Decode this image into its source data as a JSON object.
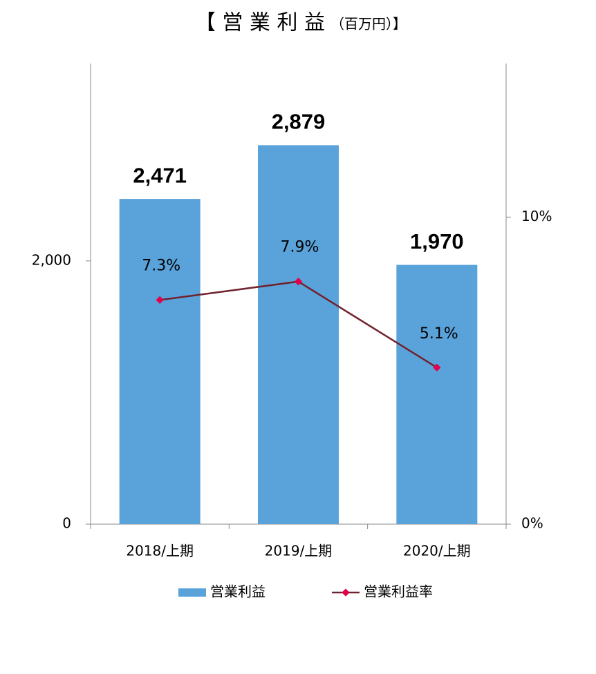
{
  "chart_data": {
    "type": "bar",
    "title": "【 営 業 利 益",
    "title_unit": "（百万円）】",
    "categories": [
      "2018/上期",
      "2019/上期",
      "2020/上期"
    ],
    "series": [
      {
        "name": "営業利益",
        "type": "bar",
        "color": "#5aa2da",
        "values": [
          2471,
          2879,
          1970
        ],
        "value_labels": [
          "2,471",
          "2,879",
          "1,970"
        ]
      },
      {
        "name": "営業利益率",
        "type": "line",
        "axis": "y2",
        "color": "#70232e",
        "marker_color": "#e0004e",
        "values": [
          7.3,
          7.9,
          5.1
        ],
        "value_labels": [
          "7.3%",
          "7.9%",
          "5.1%"
        ]
      }
    ],
    "ylim": [
      0,
      3500
    ],
    "yticks": [
      0,
      {
        "value": 2000,
        "label": "2,000"
      }
    ],
    "y2lim": [
      0,
      15
    ],
    "y2ticks": [
      {
        "value": 0,
        "label": "0%"
      },
      {
        "value": 10,
        "label": "10%"
      }
    ],
    "grid": false,
    "legend": "bottom"
  }
}
